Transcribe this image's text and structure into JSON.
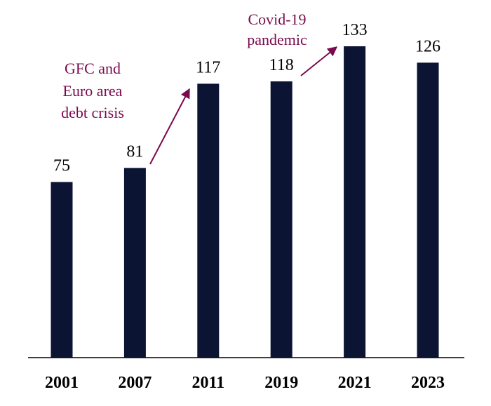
{
  "chart_data": {
    "type": "bar",
    "categories": [
      "2001",
      "2007",
      "2011",
      "2019",
      "2021",
      "2023"
    ],
    "values": [
      75,
      81,
      117,
      118,
      133,
      126
    ],
    "data_labels": [
      "75",
      "81",
      "117",
      "118",
      "133",
      "126"
    ],
    "title": "",
    "xlabel": "",
    "ylabel": "",
    "ylim": [
      0,
      133
    ],
    "grid": false,
    "legend": "none",
    "annotations": [
      {
        "lines": [
          "GFC and",
          "Euro area",
          "debt crisis"
        ],
        "from_category": "2007",
        "to_category": "2011"
      },
      {
        "lines": [
          "Covid-19",
          "pandemic"
        ],
        "from_category": "2019",
        "to_category": "2021"
      }
    ]
  },
  "colors": {
    "bar": "#0b1533",
    "annotation": "#7a0a4e",
    "axis": "#000000"
  }
}
